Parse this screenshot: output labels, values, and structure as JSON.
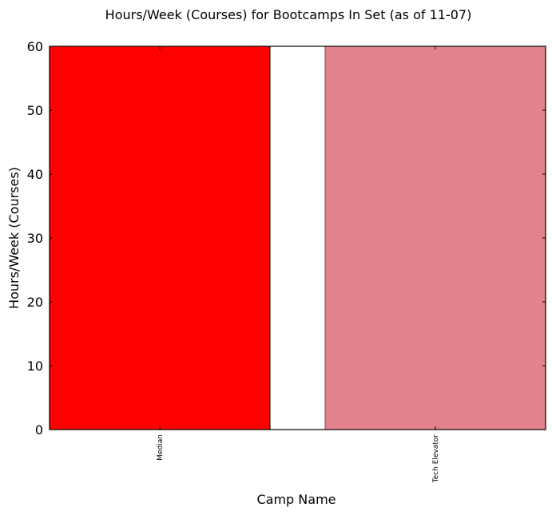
{
  "chart_data": {
    "type": "bar",
    "title": "Hours/Week (Courses) for Bootcamps In Set (as of 11-07)",
    "xlabel": "Camp Name",
    "ylabel": "Hours/Week (Courses)",
    "categories": [
      "Median",
      "Tech Elevator"
    ],
    "values": [
      60,
      60
    ],
    "colors": [
      "#ff0000",
      "#e3828a"
    ],
    "ylim": [
      0,
      60
    ],
    "yticks": [
      0,
      10,
      20,
      30,
      40,
      50,
      60
    ],
    "grid": false,
    "legend": "none"
  }
}
